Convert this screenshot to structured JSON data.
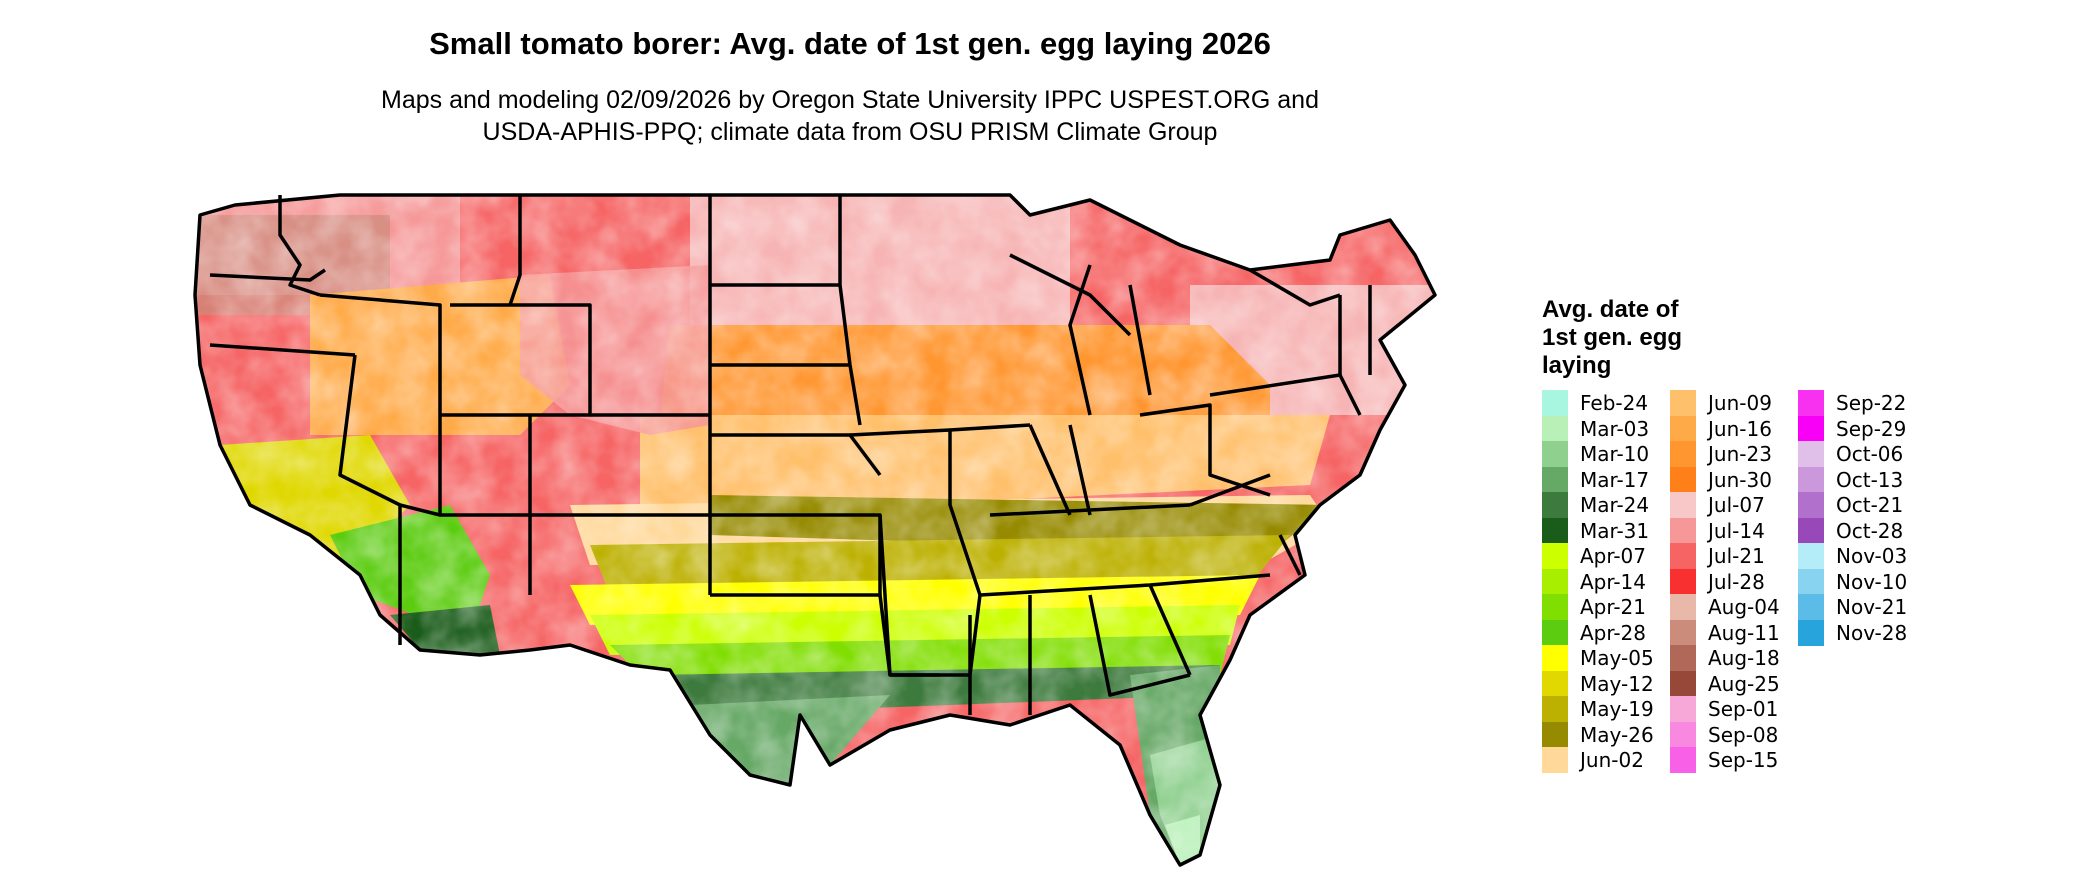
{
  "title": "Small tomato borer: Avg. date of 1st gen. egg laying 2026",
  "subtitle_line1": "Maps and modeling 02/09/2026 by Oregon State University IPPC USPEST.ORG and",
  "subtitle_line2": "USDA-APHIS-PPQ; climate data from OSU PRISM Climate Group",
  "legend": {
    "title_line1": "Avg. date of",
    "title_line2": "1st gen. egg",
    "title_line3": "laying",
    "entries": [
      {
        "label": "Feb-24",
        "color": "#a8f5e0"
      },
      {
        "label": "Mar-03",
        "color": "#b8f0b8"
      },
      {
        "label": "Mar-10",
        "color": "#8fd08f"
      },
      {
        "label": "Mar-17",
        "color": "#66a866"
      },
      {
        "label": "Mar-24",
        "color": "#3d7a3d"
      },
      {
        "label": "Mar-31",
        "color": "#1a5c1a"
      },
      {
        "label": "Apr-07",
        "color": "#ccff00"
      },
      {
        "label": "Apr-14",
        "color": "#a8ee00"
      },
      {
        "label": "Apr-21",
        "color": "#80de00"
      },
      {
        "label": "Apr-28",
        "color": "#5ccc10"
      },
      {
        "label": "May-05",
        "color": "#ffff00"
      },
      {
        "label": "May-12",
        "color": "#e0d800"
      },
      {
        "label": "May-19",
        "color": "#bcb000"
      },
      {
        "label": "May-26",
        "color": "#968a00"
      },
      {
        "label": "Jun-02",
        "color": "#ffd89a"
      },
      {
        "label": "Jun-09",
        "color": "#ffc06c"
      },
      {
        "label": "Jun-16",
        "color": "#ffaa48"
      },
      {
        "label": "Jun-23",
        "color": "#ff9630"
      },
      {
        "label": "Jun-30",
        "color": "#ff8018"
      },
      {
        "label": "Jul-07",
        "color": "#f8c8c8"
      },
      {
        "label": "Jul-14",
        "color": "#f69898"
      },
      {
        "label": "Jul-21",
        "color": "#f66464"
      },
      {
        "label": "Jul-28",
        "color": "#f83030"
      },
      {
        "label": "Aug-04",
        "color": "#e8b8a8"
      },
      {
        "label": "Aug-11",
        "color": "#cc8c7c"
      },
      {
        "label": "Aug-18",
        "color": "#b06858"
      },
      {
        "label": "Aug-25",
        "color": "#984838"
      },
      {
        "label": "Sep-01",
        "color": "#f8a8d8"
      },
      {
        "label": "Sep-08",
        "color": "#f888e0"
      },
      {
        "label": "Sep-15",
        "color": "#f860e8"
      },
      {
        "label": "Sep-22",
        "color": "#f830f0"
      },
      {
        "label": "Sep-29",
        "color": "#f800f8"
      },
      {
        "label": "Oct-06",
        "color": "#e0c0e8"
      },
      {
        "label": "Oct-13",
        "color": "#cc98dc"
      },
      {
        "label": "Oct-21",
        "color": "#b070cc"
      },
      {
        "label": "Oct-28",
        "color": "#9848b8"
      },
      {
        "label": "Nov-03",
        "color": "#b4ecf8"
      },
      {
        "label": "Nov-10",
        "color": "#88d4f0"
      },
      {
        "label": "Nov-21",
        "color": "#5cbce8"
      },
      {
        "label": "Nov-28",
        "color": "#28a4dc"
      }
    ]
  }
}
